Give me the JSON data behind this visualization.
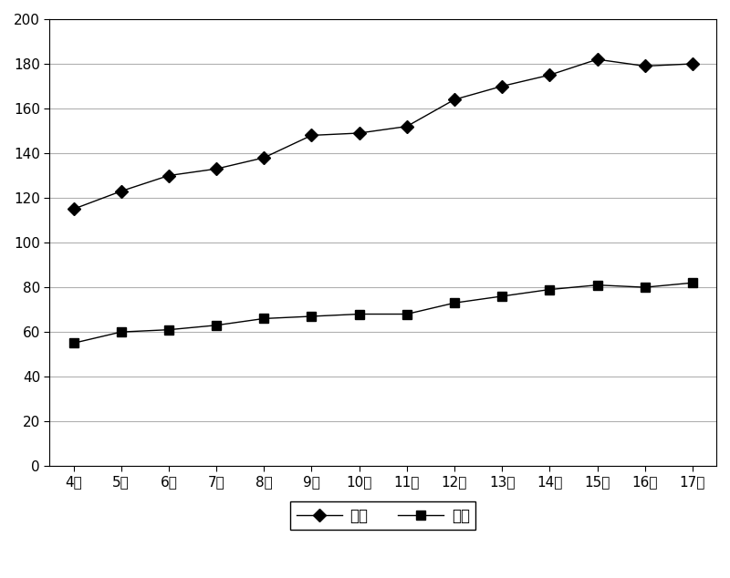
{
  "ages": [
    "4岁",
    "5岁",
    "6岁",
    "7岁",
    "8岁",
    "9岁",
    "10岁",
    "11岁",
    "12岁",
    "13岁",
    "14岁",
    "15岁",
    "16岁",
    "17岁"
  ],
  "hand_length": [
    115,
    123,
    130,
    133,
    138,
    148,
    149,
    152,
    164,
    170,
    175,
    182,
    179,
    180
  ],
  "hand_width": [
    55,
    60,
    61,
    63,
    66,
    67,
    68,
    68,
    73,
    76,
    79,
    81,
    80,
    82
  ],
  "line_color": "#000000",
  "marker_diamond": "D",
  "marker_square": "s",
  "legend_label_length": "手长",
  "legend_label_width": "手宽",
  "ylim": [
    0,
    200
  ],
  "yticks": [
    0,
    20,
    40,
    60,
    80,
    100,
    120,
    140,
    160,
    180,
    200
  ],
  "grid_color": "#b0b0b0",
  "background_color": "#ffffff",
  "tick_fontsize": 11,
  "legend_fontsize": 12
}
